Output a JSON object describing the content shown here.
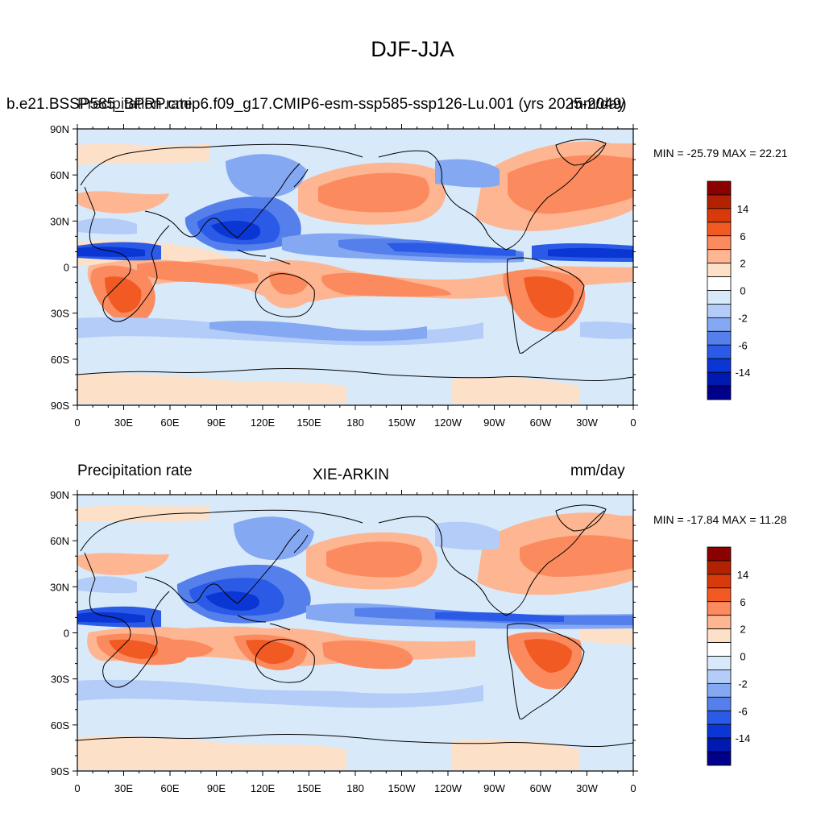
{
  "figure": {
    "title": "DJF-JJA"
  },
  "panels": [
    {
      "left_label": "Precipitation rate",
      "overlap_label": "b.e21.BSSP585_BPRP.cmip6.f09_g17.CMIP6-esm-ssp585-ssp126-Lu.001 (yrs 2025-2049)",
      "right_label": "mm/day",
      "stats": "MIN = -25.79 MAX =  22.21"
    },
    {
      "left_label": "Precipitation rate",
      "center_label": "XIE-ARKIN",
      "right_label": "mm/day",
      "stats": "MIN = -17.84 MAX =  11.28"
    }
  ],
  "axes": {
    "lat_ticks": [
      "90N",
      "60N",
      "30N",
      "0",
      "30S",
      "60S",
      "90S"
    ],
    "lon_ticks": [
      "0",
      "30E",
      "60E",
      "90E",
      "120E",
      "150E",
      "180",
      "150W",
      "120W",
      "90W",
      "60W",
      "30W",
      "0"
    ]
  },
  "colorbar": {
    "labels": [
      "14",
      "6",
      "2",
      "0",
      "-2",
      "-6",
      "-14"
    ],
    "colors": [
      "#8b0000",
      "#b22200",
      "#d83a0c",
      "#f25a24",
      "#fb8b5e",
      "#fdb592",
      "#fde0c8",
      "#ffffff",
      "#d8eafa",
      "#b3ccf8",
      "#85a8f2",
      "#5580ec",
      "#2b5ae6",
      "#0a36d4",
      "#0019b0",
      "#00008b"
    ]
  }
}
